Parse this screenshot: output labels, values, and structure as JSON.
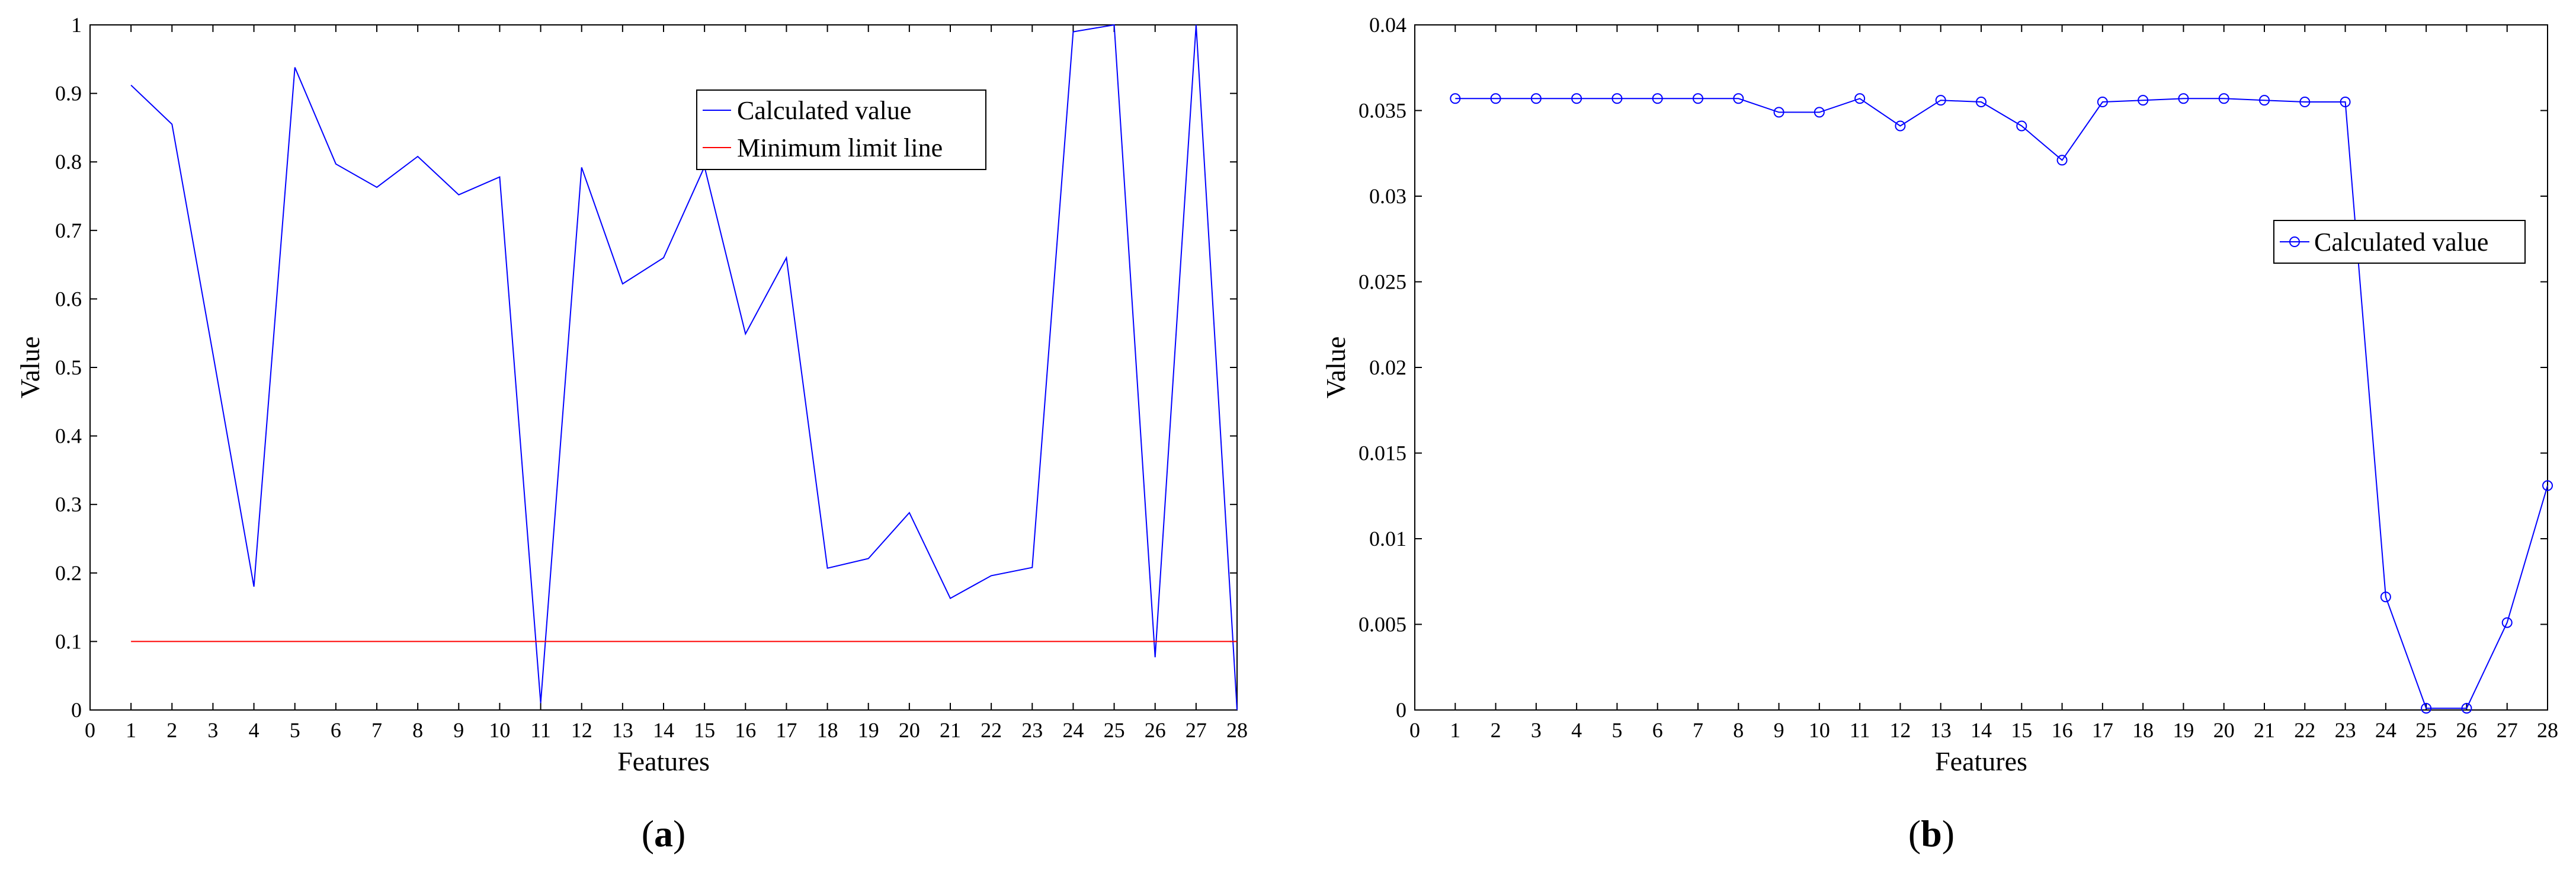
{
  "chart_data": [
    {
      "type": "line",
      "panel_label": "a",
      "xlabel": "Features",
      "ylabel": "Value",
      "xlim": [
        0,
        28
      ],
      "ylim": [
        0,
        1
      ],
      "xticks": [
        0,
        1,
        2,
        3,
        4,
        5,
        6,
        7,
        8,
        9,
        10,
        11,
        12,
        13,
        14,
        15,
        16,
        17,
        18,
        19,
        20,
        21,
        22,
        23,
        24,
        25,
        26,
        27,
        28
      ],
      "yticks": [
        0,
        0.1,
        0.2,
        0.3,
        0.4,
        0.5,
        0.6,
        0.7,
        0.8,
        0.9,
        1
      ],
      "ytick_labels": [
        "0",
        "0.1",
        "0.2",
        "0.3",
        "0.4",
        "0.5",
        "0.6",
        "0.7",
        "0.8",
        "0.9",
        "1"
      ],
      "grid": false,
      "legend_position": "top-right",
      "x": [
        1,
        2,
        3,
        4,
        5,
        6,
        7,
        8,
        9,
        10,
        11,
        12,
        13,
        14,
        15,
        16,
        17,
        18,
        19,
        20,
        21,
        22,
        23,
        24,
        25,
        26,
        27,
        28
      ],
      "series": [
        {
          "name": "Calculated value",
          "color": "#0000ff",
          "marker": "none",
          "values": [
            0.912,
            0.855,
            0.52,
            0.18,
            0.938,
            0.797,
            0.763,
            0.808,
            0.752,
            0.778,
            0.01,
            0.792,
            0.622,
            0.66,
            0.793,
            0.549,
            0.66,
            0.207,
            0.221,
            0.288,
            0.163,
            0.196,
            0.208,
            0.99,
            1.0,
            0.077,
            1.0,
            0.0
          ]
        },
        {
          "name": "Minimum limit line",
          "color": "#ff0000",
          "marker": "none",
          "values": [
            0.1,
            0.1,
            0.1,
            0.1,
            0.1,
            0.1,
            0.1,
            0.1,
            0.1,
            0.1,
            0.1,
            0.1,
            0.1,
            0.1,
            0.1,
            0.1,
            0.1,
            0.1,
            0.1,
            0.1,
            0.1,
            0.1,
            0.1,
            0.1,
            0.1,
            0.1,
            0.1,
            0.1
          ]
        }
      ]
    },
    {
      "type": "line",
      "panel_label": "b",
      "xlabel": "Features",
      "ylabel": "Value",
      "xlim": [
        0,
        28
      ],
      "ylim": [
        0,
        0.04
      ],
      "xticks": [
        0,
        1,
        2,
        3,
        4,
        5,
        6,
        7,
        8,
        9,
        10,
        11,
        12,
        13,
        14,
        15,
        16,
        17,
        18,
        19,
        20,
        21,
        22,
        23,
        24,
        25,
        26,
        27,
        28
      ],
      "yticks": [
        0,
        0.005,
        0.01,
        0.015,
        0.02,
        0.025,
        0.03,
        0.035,
        0.04
      ],
      "ytick_labels": [
        "0",
        "0.005",
        "0.01",
        "0.015",
        "0.02",
        "0.025",
        "0.03",
        "0.035",
        "0.04"
      ],
      "grid": false,
      "legend_position": "right",
      "x": [
        1,
        2,
        3,
        4,
        5,
        6,
        7,
        8,
        9,
        10,
        11,
        12,
        13,
        14,
        15,
        16,
        17,
        18,
        19,
        20,
        21,
        22,
        23,
        24,
        25,
        26,
        27,
        28
      ],
      "series": [
        {
          "name": "Calculated value",
          "color": "#0000ff",
          "marker": "circle",
          "values": [
            0.0357,
            0.0357,
            0.0357,
            0.0357,
            0.0357,
            0.0357,
            0.0357,
            0.0357,
            0.0349,
            0.0349,
            0.0357,
            0.0341,
            0.0356,
            0.0355,
            0.0341,
            0.0321,
            0.0355,
            0.0356,
            0.0357,
            0.0357,
            0.0356,
            0.0355,
            0.0355,
            0.0066,
            0.0001,
            0.0001,
            0.0051,
            0.0131
          ]
        }
      ]
    }
  ]
}
